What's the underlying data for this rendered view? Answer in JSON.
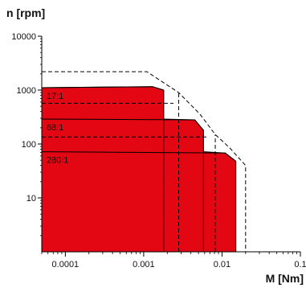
{
  "chart_data": {
    "type": "area",
    "title": "",
    "ylabel": "n [rpm]",
    "xlabel": "M [Nm]",
    "xscale": "log",
    "yscale": "log",
    "xlim": [
      5e-05,
      0.1
    ],
    "ylim": [
      1,
      10000
    ],
    "x_ticks": [
      {
        "value": 0.0001,
        "label": "0.0001"
      },
      {
        "value": 0.001,
        "label": "0.001"
      },
      {
        "value": 0.01,
        "label": "0.01"
      },
      {
        "value": 0.1,
        "label": "0.1"
      }
    ],
    "y_ticks": [
      {
        "value": 10000,
        "label": "10000"
      },
      {
        "value": 1000,
        "label": "1000"
      },
      {
        "value": 100,
        "label": "100"
      },
      {
        "value": 10,
        "label": "10"
      }
    ],
    "grid": false,
    "fill_color": "#e30613",
    "envelope": [
      [
        5e-05,
        1
      ],
      [
        5e-05,
        1110
      ],
      [
        0.0013,
        1160
      ],
      [
        0.0018,
        1000
      ],
      [
        0.0018,
        290
      ],
      [
        0.0045,
        280
      ],
      [
        0.0058,
        180
      ],
      [
        0.0058,
        72
      ],
      [
        0.011,
        68
      ],
      [
        0.015,
        48
      ],
      [
        0.015,
        1
      ]
    ],
    "series": [
      {
        "name": "17:1",
        "speed_rpm": 1110,
        "steps": [
          [
            5e-05,
            1110
          ],
          [
            0.0013,
            1160
          ],
          [
            0.0018,
            1000
          ]
        ],
        "corner_torque": 0.0018
      },
      {
        "name": "68:1",
        "speed_rpm": 290,
        "steps": [
          [
            5e-05,
            290
          ],
          [
            0.0045,
            280
          ],
          [
            0.0058,
            180
          ]
        ],
        "corner_torque": 0.0058
      },
      {
        "name": "280:1",
        "speed_rpm": 72,
        "steps": [
          [
            5e-05,
            72
          ],
          [
            0.011,
            68
          ],
          [
            0.015,
            48
          ]
        ],
        "corner_torque": 0.015
      }
    ],
    "dashed_envelope": [
      [
        5e-05,
        2200
      ],
      [
        0.0011,
        2200
      ],
      [
        0.0028,
        900
      ],
      [
        0.0052,
        360
      ],
      [
        0.0082,
        150
      ],
      [
        0.0125,
        85
      ],
      [
        0.02,
        40
      ],
      [
        0.02,
        1
      ]
    ],
    "dashed_lines": [
      {
        "kind": "h",
        "from": 5e-05,
        "to": 0.0024,
        "y": 570
      },
      {
        "kind": "h",
        "from": 5e-05,
        "to": 0.0068,
        "y": 135
      },
      {
        "kind": "v",
        "x": 0.0028,
        "from": 1,
        "to": 900
      },
      {
        "kind": "v",
        "x": 0.0082,
        "from": 1,
        "to": 150
      }
    ]
  }
}
